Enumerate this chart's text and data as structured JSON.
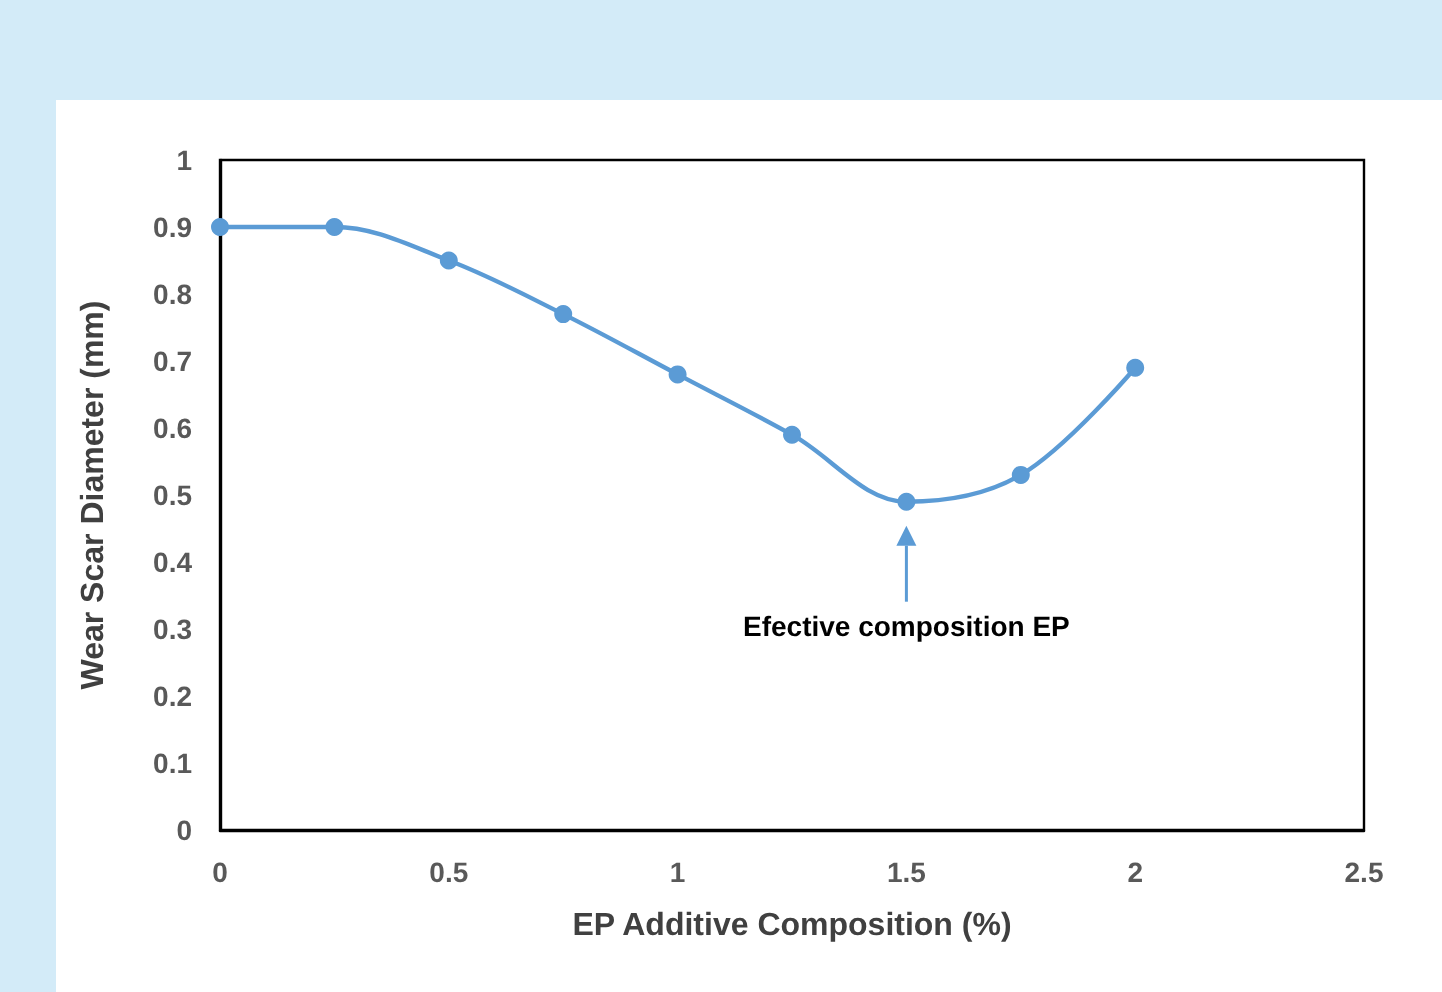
{
  "chart_data": {
    "type": "line",
    "xlabel": "EP Additive Composition (%)",
    "ylabel": "Wear Scar Diameter (mm)",
    "x": [
      0,
      0.25,
      0.5,
      0.75,
      1,
      1.25,
      1.5,
      1.75,
      2
    ],
    "series": [
      {
        "color": "#5b9bd5",
        "values": [
          0.9,
          0.9,
          0.85,
          0.77,
          0.68,
          0.59,
          0.49,
          0.53,
          0.69
        ]
      }
    ],
    "xlim": [
      0,
      2.5
    ],
    "xticks": [
      0,
      0.5,
      1,
      1.5,
      2,
      2.5
    ],
    "ylim": [
      0,
      1
    ],
    "yticks": [
      0,
      0.1,
      0.2,
      0.3,
      0.4,
      0.5,
      0.6,
      0.7,
      0.8,
      0.9,
      1
    ],
    "grid": false,
    "marker": "circle",
    "line_style": "solid",
    "annotations": [
      "Efective composition EP"
    ]
  }
}
